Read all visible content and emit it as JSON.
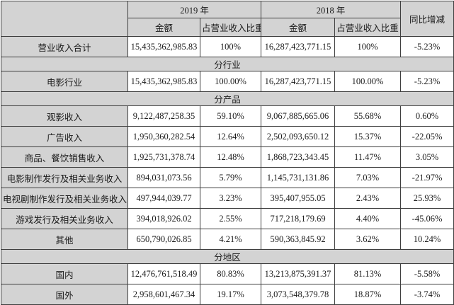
{
  "colors": {
    "cell_shade": "#d3d3d3",
    "grid_border": "#3e3e3e",
    "text": "#1b1b1b"
  },
  "header": {
    "year_2019": "2019 年",
    "year_2018": "2018 年",
    "amount": "金额",
    "pct_of_revenue": "占营业收入比重",
    "yoy_change": "同比增减"
  },
  "rows": [
    {
      "type": "data",
      "label": "营业收入合计",
      "amount_2019": "15,435,362,985.83",
      "pct_2019": "100%",
      "amount_2018": "16,287,423,771.15",
      "pct_2018": "100%",
      "yoy": "-5.23%",
      "pct_shaded": true
    },
    {
      "type": "section",
      "label": "分行业"
    },
    {
      "type": "data",
      "label": "电影行业",
      "amount_2019": "15,435,362,985.83",
      "pct_2019": "100.00%",
      "amount_2018": "16,287,423,771.15",
      "pct_2018": "100.00%",
      "yoy": "-5.23%"
    },
    {
      "type": "section",
      "label": "分产品"
    },
    {
      "type": "data",
      "label": "观影收入",
      "amount_2019": "9,122,487,258.35",
      "pct_2019": "59.10%",
      "amount_2018": "9,067,885,665.06",
      "pct_2018": "55.68%",
      "yoy": "0.60%"
    },
    {
      "type": "data",
      "label": "广告收入",
      "amount_2019": "1,950,360,282.54",
      "pct_2019": "12.64%",
      "amount_2018": "2,502,093,650.12",
      "pct_2018": "15.37%",
      "yoy": "-22.05%"
    },
    {
      "type": "data",
      "label": "商品、餐饮销售收入",
      "amount_2019": "1,925,731,378.74",
      "pct_2019": "12.48%",
      "amount_2018": "1,868,723,343.45",
      "pct_2018": "11.47%",
      "yoy": "3.05%"
    },
    {
      "type": "data",
      "label": "电影制作发行及相关业务收入",
      "amount_2019": "894,031,073.56",
      "pct_2019": "5.79%",
      "amount_2018": "1,145,731,131.86",
      "pct_2018": "7.03%",
      "yoy": "-21.97%"
    },
    {
      "type": "data",
      "label": "电视剧制作发行及相关业务收入",
      "amount_2019": "497,944,039.77",
      "pct_2019": "3.23%",
      "amount_2018": "395,407,955.05",
      "pct_2018": "2.43%",
      "yoy": "25.93%"
    },
    {
      "type": "data",
      "label": "游戏发行及相关业务收入",
      "amount_2019": "394,018,926.02",
      "pct_2019": "2.55%",
      "amount_2018": "717,218,179.69",
      "pct_2018": "4.40%",
      "yoy": "-45.06%"
    },
    {
      "type": "data",
      "label": "其他",
      "amount_2019": "650,790,026.85",
      "pct_2019": "4.21%",
      "amount_2018": "590,363,845.92",
      "pct_2018": "3.62%",
      "yoy": "10.24%"
    },
    {
      "type": "section",
      "label": "分地区"
    },
    {
      "type": "data",
      "label": "国内",
      "amount_2019": "12,476,761,518.49",
      "pct_2019": "80.83%",
      "amount_2018": "13,213,875,391.37",
      "pct_2018": "81.13%",
      "yoy": "-5.58%"
    },
    {
      "type": "data",
      "label": "国外",
      "amount_2019": "2,958,601,467.34",
      "pct_2019": "19.17%",
      "amount_2018": "3,073,548,379.78",
      "pct_2018": "18.87%",
      "yoy": "-3.74%"
    }
  ]
}
